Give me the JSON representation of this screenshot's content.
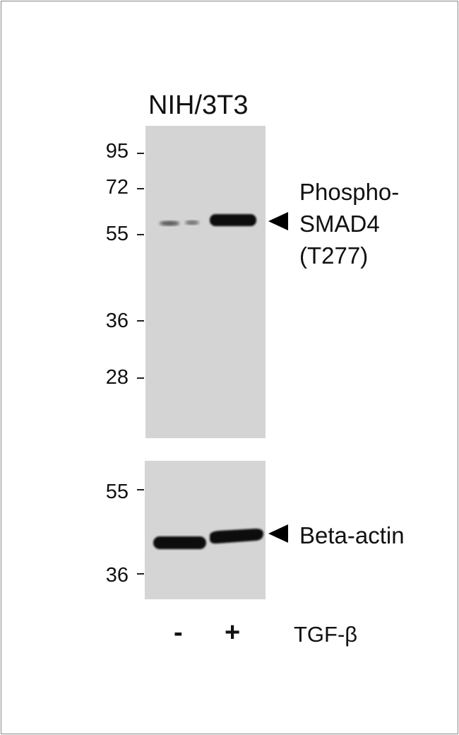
{
  "figure": {
    "cell_line": "NIH/3T3",
    "top_panel": {
      "markers": [
        "95",
        "72",
        "55",
        "36",
        "28"
      ],
      "target_label_lines": [
        "Phospho-",
        "SMAD4",
        "(T277)"
      ]
    },
    "bottom_panel": {
      "markers": [
        "55",
        "36"
      ],
      "target_label": "Beta-actin"
    },
    "lanes": [
      {
        "sign": "-"
      },
      {
        "sign": "+"
      }
    ],
    "treatment": "TGF-β",
    "colors": {
      "membrane": "#d4d4d4",
      "band": "#0a0a0a"
    }
  }
}
